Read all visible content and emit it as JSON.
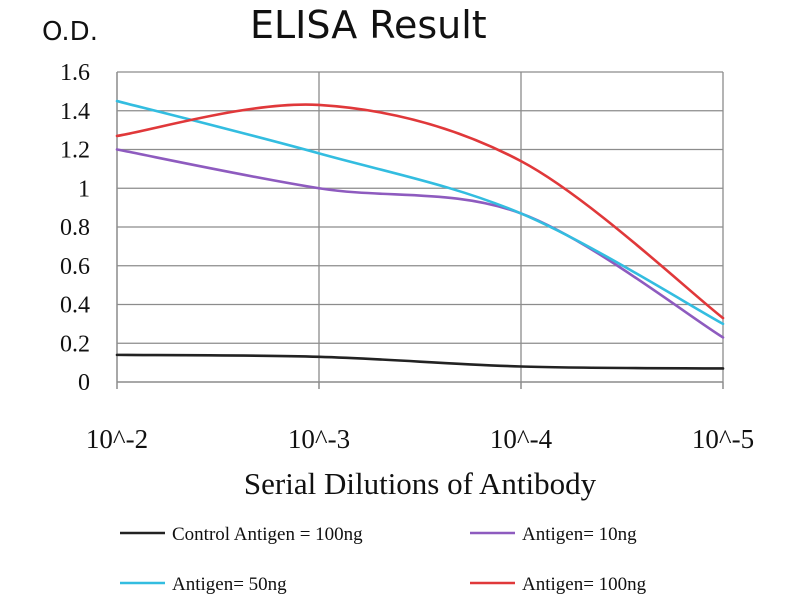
{
  "chart_data": {
    "type": "line",
    "title": "ELISA Result",
    "ylabel": "O.D.",
    "xlabel": "Serial Dilutions of Antibody",
    "x": [
      "10^-2",
      "10^-3",
      "10^-4",
      "10^-5"
    ],
    "ylim": [
      0,
      1.6
    ],
    "yticks": [
      0,
      0.2,
      0.4,
      0.6,
      0.8,
      1,
      1.2,
      1.4,
      1.6
    ],
    "grid": true,
    "legend_position": "bottom",
    "series": [
      {
        "name": "Control Antigen = 100ng",
        "color": "#222222",
        "values": [
          0.14,
          0.13,
          0.08,
          0.07
        ]
      },
      {
        "name": "Antigen= 10ng",
        "color": "#8e5bbf",
        "values": [
          1.2,
          1.0,
          0.87,
          0.23
        ]
      },
      {
        "name": "Antigen= 50ng",
        "color": "#33bde0",
        "values": [
          1.45,
          1.18,
          0.87,
          0.3
        ]
      },
      {
        "name": "Antigen= 100ng",
        "color": "#e0383a",
        "values": [
          1.27,
          1.43,
          1.14,
          0.33
        ]
      }
    ]
  }
}
